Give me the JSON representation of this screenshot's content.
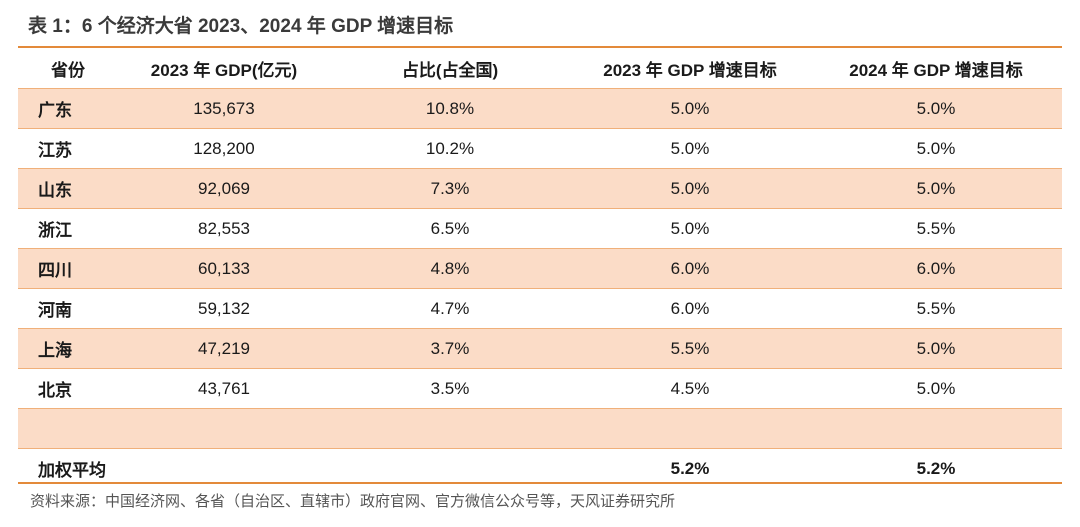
{
  "title": "表 1：6 个经济大省 2023、2024 年 GDP 增速目标",
  "table": {
    "headers": [
      "省份",
      "2023 年 GDP(亿元)",
      "占比(占全国)",
      "2023 年 GDP 增速目标",
      "2024 年 GDP 增速目标"
    ],
    "rows": [
      {
        "province": "广东",
        "gdp": "135,673",
        "share": "10.8%",
        "target2023": "5.0%",
        "target2024": "5.0%"
      },
      {
        "province": "江苏",
        "gdp": "128,200",
        "share": "10.2%",
        "target2023": "5.0%",
        "target2024": "5.0%"
      },
      {
        "province": "山东",
        "gdp": "92,069",
        "share": "7.3%",
        "target2023": "5.0%",
        "target2024": "5.0%"
      },
      {
        "province": "浙江",
        "gdp": "82,553",
        "share": "6.5%",
        "target2023": "5.0%",
        "target2024": "5.5%"
      },
      {
        "province": "四川",
        "gdp": "60,133",
        "share": "4.8%",
        "target2023": "6.0%",
        "target2024": "6.0%"
      },
      {
        "province": "河南",
        "gdp": "59,132",
        "share": "4.7%",
        "target2023": "6.0%",
        "target2024": "5.5%"
      },
      {
        "province": "上海",
        "gdp": "47,219",
        "share": "3.7%",
        "target2023": "5.5%",
        "target2024": "5.0%"
      },
      {
        "province": "北京",
        "gdp": "43,761",
        "share": "3.5%",
        "target2023": "4.5%",
        "target2024": "5.0%"
      }
    ],
    "average": {
      "label": "加权平均",
      "target2023": "5.2%",
      "target2024": "5.2%"
    }
  },
  "source": "资料来源：中国经济网、各省（自治区、直辖市）政府官网、官方微信公众号等，天风证券研究所",
  "colors": {
    "band": "#fbdcc7",
    "rule": "#e38a3a"
  }
}
